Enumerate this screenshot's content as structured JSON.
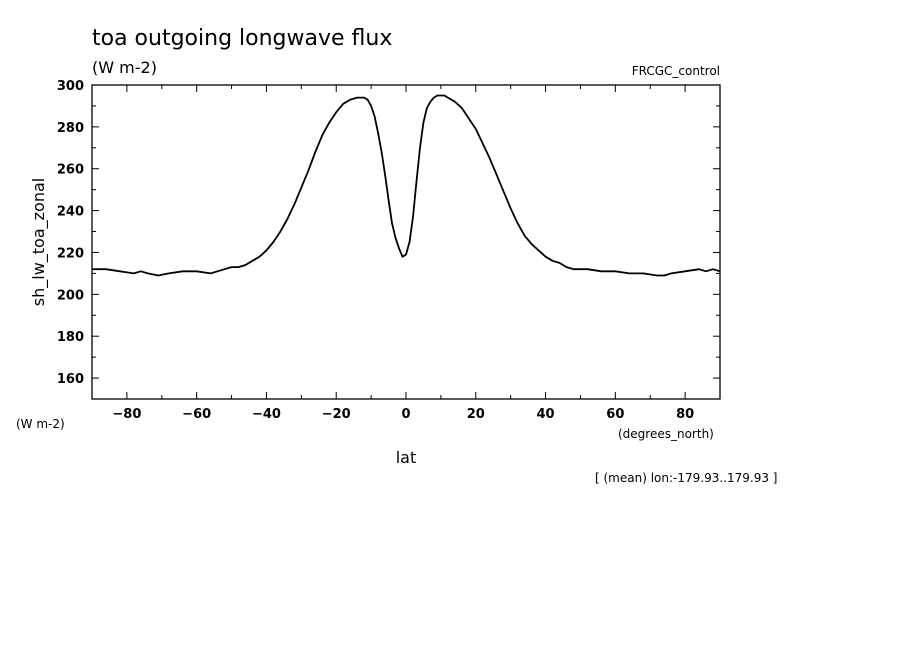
{
  "chart_data": {
    "type": "line",
    "title": "toa outgoing longwave flux",
    "subtitle": "(W m-2)",
    "dataset": "FRCGC_control",
    "ylabel": "sh_lw_toa_zonal",
    "yunits": "(W m-2)",
    "xlabel": "lat",
    "xunits": "(degrees_north)",
    "footnote": "[ (mean) lon:-179.93..179.93 ]",
    "xlim": [
      -90,
      90
    ],
    "ylim": [
      150,
      300
    ],
    "xticks": [
      -80,
      -60,
      -40,
      -20,
      0,
      20,
      40,
      60,
      80
    ],
    "yticks": [
      160,
      180,
      200,
      220,
      240,
      260,
      280,
      300
    ],
    "grid": false,
    "series": [
      {
        "x": [
          -90,
          -86,
          -82,
          -78,
          -76,
          -74,
          -71,
          -68,
          -64,
          -60,
          -56,
          -54,
          -52,
          -50,
          -48,
          -46,
          -44,
          -42,
          -40,
          -38,
          -36,
          -34,
          -32,
          -30,
          -28,
          -26,
          -24,
          -22,
          -20,
          -18,
          -16,
          -14,
          -12,
          -11,
          -10,
          -9,
          -8,
          -7,
          -6,
          -5,
          -4,
          -3,
          -2,
          -1,
          0,
          1,
          2,
          3,
          4,
          5,
          6,
          7,
          8,
          9,
          10,
          11,
          12,
          14,
          16,
          18,
          20,
          22,
          24,
          26,
          28,
          30,
          32,
          34,
          36,
          38,
          40,
          42,
          44,
          46,
          48,
          50,
          52,
          56,
          60,
          64,
          68,
          72,
          74,
          76,
          80,
          84,
          86,
          88,
          90
        ],
        "values": [
          212,
          212,
          211,
          210,
          211,
          210,
          209,
          210,
          211,
          211,
          210,
          211,
          212,
          213,
          213,
          214,
          216,
          218,
          221,
          225,
          230,
          236,
          243,
          251,
          259,
          268,
          276,
          282,
          287,
          291,
          293,
          294,
          294,
          293,
          290,
          285,
          277,
          268,
          257,
          245,
          234,
          227,
          222,
          218,
          219,
          225,
          237,
          254,
          270,
          282,
          289,
          292,
          294,
          295,
          295,
          295,
          294,
          292,
          289,
          284,
          279,
          272,
          265,
          257,
          249,
          241,
          234,
          228,
          224,
          221,
          218,
          216,
          215,
          213,
          212,
          212,
          212,
          211,
          211,
          210,
          210,
          209,
          209,
          210,
          211,
          212,
          211,
          212,
          211
        ]
      }
    ]
  }
}
